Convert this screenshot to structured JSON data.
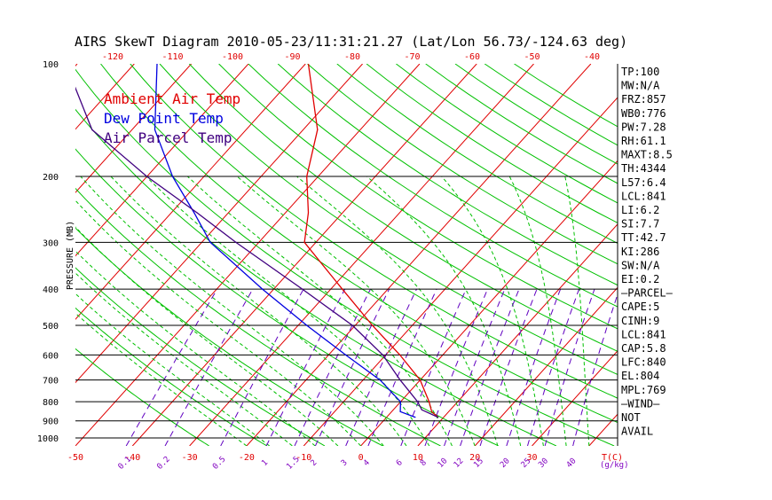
{
  "chart_data": {
    "type": "line",
    "title": "AIRS SkewT Diagram 2010-05-23/11:31:21.27 (Lat/Lon 56.73/-124.63 deg)",
    "ylabel": "PRESSURE (MB)",
    "y_scale": "log",
    "ylim": [
      1050,
      100
    ],
    "xlim": [
      -50,
      45
    ],
    "x_units_label": "T(C)",
    "mixing_units_label": "(g/kg)",
    "pressure_ticks": [
      100,
      200,
      300,
      400,
      500,
      600,
      700,
      800,
      900,
      1000
    ],
    "isobar_lines": [
      200,
      300,
      400,
      500,
      600,
      700,
      800,
      900,
      1000
    ],
    "bottom_temp_ticks": [
      "-50",
      "-40",
      "-30",
      "-20",
      "-10",
      "0",
      "10",
      "20",
      "30"
    ],
    "top_temp_ticks": [
      "-120",
      "-110",
      "-100",
      "-90",
      "-80",
      "-70",
      "-60",
      "-50",
      "-40"
    ],
    "mixing_ratio_ticks": [
      "0.1",
      "0.2",
      "0.5",
      "1",
      "1.5",
      "2",
      "3",
      "4",
      "6",
      "8",
      "10",
      "12",
      "15",
      "20",
      "25",
      "30",
      "40"
    ],
    "colors": {
      "isotherm": "#e00000",
      "dry_adiabat": "#00c000",
      "moist_adiabat": "#00c000",
      "mixing_ratio": "#6000c0",
      "temperature": "#e00000",
      "dewpoint": "#0000e0",
      "parcel": "#400080"
    },
    "series": [
      {
        "name": "Ambient Air Temp",
        "color": "#e00000",
        "points": [
          {
            "p": 880,
            "t": 9.0
          },
          {
            "p": 850,
            "t": 7.0
          },
          {
            "p": 800,
            "t": 5.0
          },
          {
            "p": 700,
            "t": 0.0
          },
          {
            "p": 600,
            "t": -7.5
          },
          {
            "p": 500,
            "t": -17.0
          },
          {
            "p": 400,
            "t": -28.0
          },
          {
            "p": 300,
            "t": -42.0
          },
          {
            "p": 250,
            "t": -46.0
          },
          {
            "p": 200,
            "t": -52.0
          },
          {
            "p": 150,
            "t": -57.5
          },
          {
            "p": 100,
            "t": -69.5
          }
        ]
      },
      {
        "name": "Dew Point Temp",
        "color": "#0000e0",
        "points": [
          {
            "p": 880,
            "t": 5.0
          },
          {
            "p": 850,
            "t": 1.5
          },
          {
            "p": 800,
            "t": 0.0
          },
          {
            "p": 700,
            "t": -7.0
          },
          {
            "p": 600,
            "t": -17.0
          },
          {
            "p": 500,
            "t": -28.5
          },
          {
            "p": 400,
            "t": -42.0
          },
          {
            "p": 300,
            "t": -58.5
          },
          {
            "p": 250,
            "t": -66.0
          },
          {
            "p": 200,
            "t": -75.5
          },
          {
            "p": 150,
            "t": -86.0
          },
          {
            "p": 100,
            "t": -96.0
          }
        ]
      },
      {
        "name": "Air Parcel Temp",
        "color": "#400080",
        "points": [
          {
            "p": 880,
            "t": 9.0
          },
          {
            "p": 841,
            "t": 5.0
          },
          {
            "p": 800,
            "t": 3.0
          },
          {
            "p": 700,
            "t": -3.5
          },
          {
            "p": 600,
            "t": -10.5
          },
          {
            "p": 500,
            "t": -20.5
          },
          {
            "p": 400,
            "t": -35.0
          },
          {
            "p": 300,
            "t": -54.0
          },
          {
            "p": 250,
            "t": -65.5
          },
          {
            "p": 200,
            "t": -80.0
          },
          {
            "p": 150,
            "t": -97.0
          },
          {
            "p": 100,
            "t": -112.0
          }
        ]
      }
    ],
    "stats": [
      "TP:100",
      "MW:N/A",
      "FRZ:857",
      "WB0:776",
      "PW:7.28",
      "RH:61.1",
      "MAXT:8.5",
      "TH:4344",
      "L57:6.4",
      "LCL:841",
      "LI:6.2",
      "SI:7.7",
      "TT:42.7",
      "KI:286",
      "SW:N/A",
      "EI:0.2",
      "–PARCEL–",
      "CAPE:5",
      "CINH:9",
      "LCL:841",
      "CAP:5.8",
      "LFC:840",
      "EL:804",
      "MPL:769",
      "–WIND–",
      "NOT",
      "AVAIL"
    ]
  }
}
